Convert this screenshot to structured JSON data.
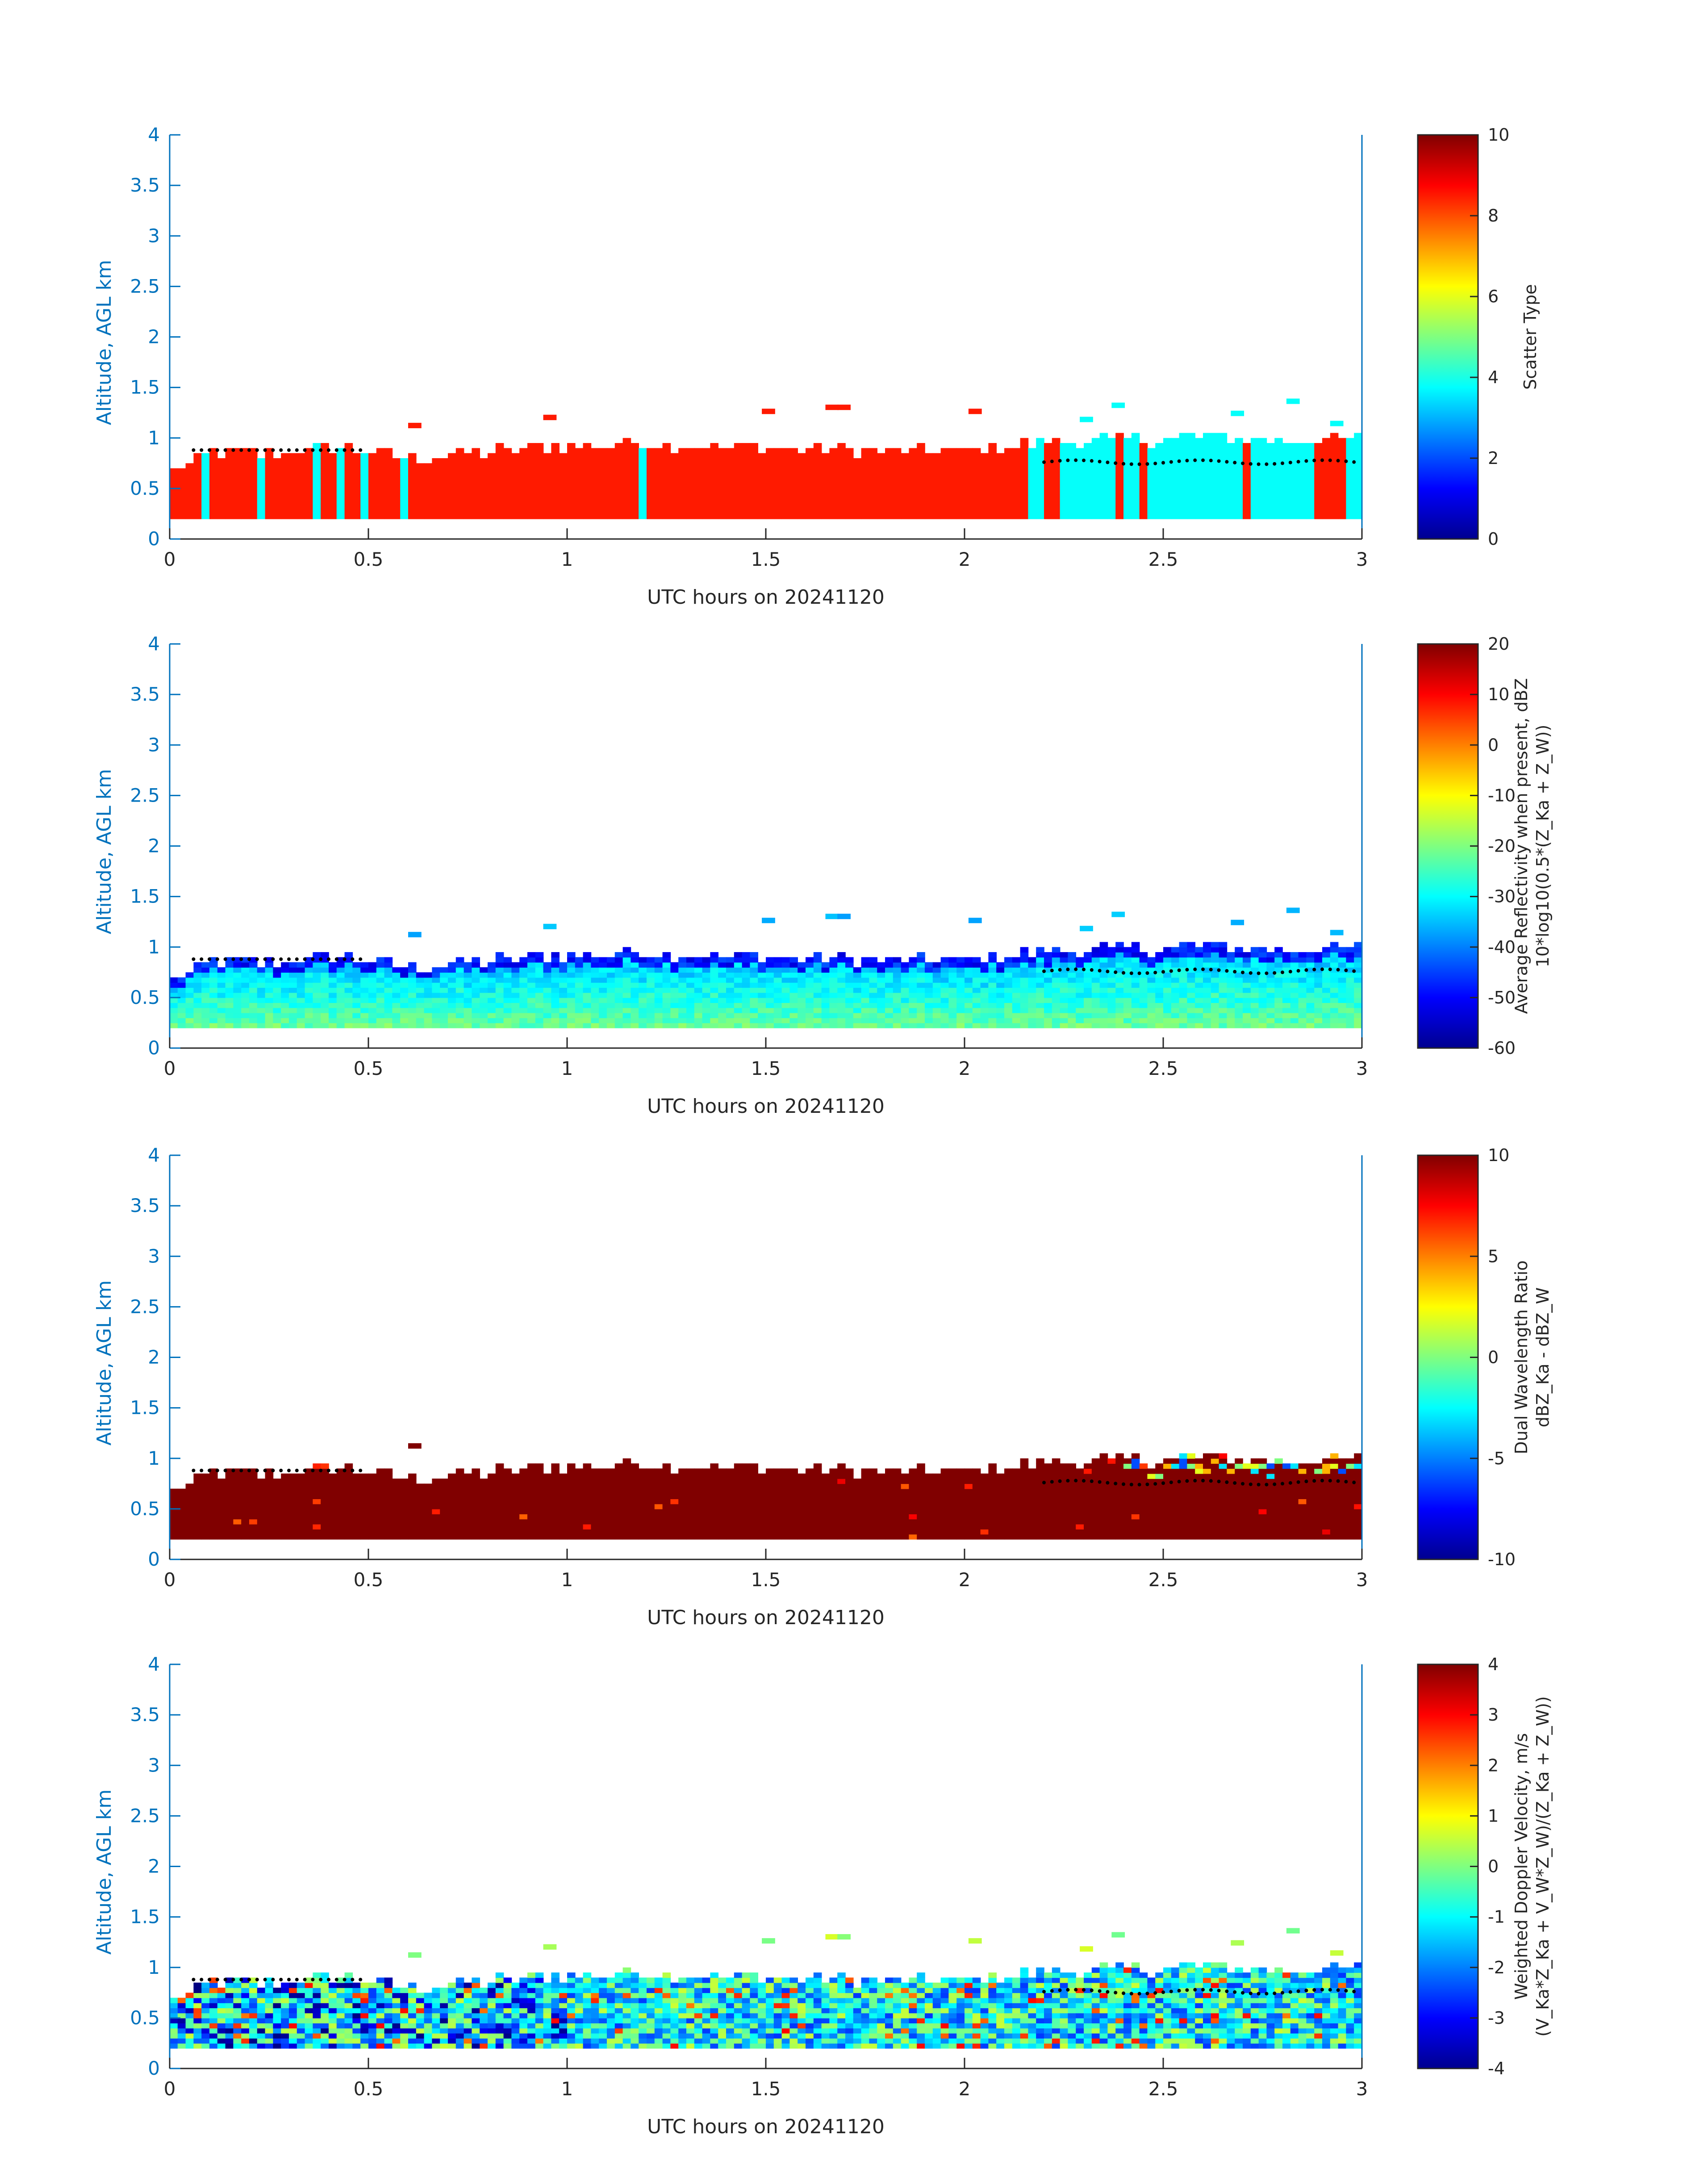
{
  "panels": [
    {
      "ylabel": "Altitude, AGL km",
      "xlabel": "UTC hours on 20241120",
      "colorbar": {
        "cmap": "jet",
        "min": 0,
        "max": 10,
        "ticks": [
          "0",
          "2",
          "4",
          "6",
          "8",
          "10"
        ],
        "label_lines": [
          "Scatter Type"
        ]
      },
      "field": "scatter"
    },
    {
      "ylabel": "Altitude, AGL km",
      "xlabel": "UTC hours on 20241120",
      "colorbar": {
        "cmap": "jet",
        "min": -60,
        "max": 20,
        "ticks": [
          "-60",
          "-50",
          "-40",
          "-30",
          "-20",
          "-10",
          "0",
          "10",
          "20"
        ],
        "label_lines": [
          "Average Reflectivity when present, dBZ",
          "10*log10(0.5*(Z_Ka + Z_W))"
        ]
      },
      "field": "reflectivity"
    },
    {
      "ylabel": "Altitude, AGL km",
      "xlabel": "UTC hours on 20241120",
      "colorbar": {
        "cmap": "jet",
        "min": -10,
        "max": 10,
        "ticks": [
          "-10",
          "-5",
          "0",
          "5",
          "10"
        ],
        "label_lines": [
          "Dual Wavelength Ratio",
          "dBZ_Ka - dBZ_W"
        ]
      },
      "field": "dwr"
    },
    {
      "ylabel": "Altitude, AGL km",
      "xlabel": "UTC hours on 20241120",
      "colorbar": {
        "cmap": "jet",
        "min": -4,
        "max": 4,
        "ticks": [
          "-4",
          "-3",
          "-2",
          "-1",
          "0",
          "1",
          "2",
          "3",
          "4"
        ],
        "label_lines": [
          "Weighted Doppler Velocity, m/s",
          "(V_Ka*Z_Ka + V_W*Z_W)/(Z_Ka + Z_W))"
        ]
      },
      "field": "velocity"
    }
  ],
  "axes": {
    "x_ticks": [
      "0",
      "0.5",
      "1",
      "1.5",
      "2",
      "2.5",
      "3"
    ],
    "y_ticks": [
      "0",
      "0.5",
      "1",
      "1.5",
      "2",
      "2.5",
      "3",
      "3.5",
      "4"
    ],
    "xlim": [
      0,
      3
    ],
    "ylim": [
      0,
      4
    ]
  },
  "chart_data": [
    {
      "type": "heatmap",
      "title": "",
      "xlabel": "UTC hours on 20241120",
      "ylabel": "Altitude, AGL km",
      "xlim": [
        0,
        3
      ],
      "ylim": [
        0,
        4
      ],
      "colorbar_label": "Scatter Type",
      "color_range": [
        0,
        10
      ],
      "description_values": {
        "dominant_value_precip": 8.5,
        "dominant_value_cloud": 3.8
      },
      "cloud_top_km": [
        [
          0.0,
          0.62
        ],
        [
          0.1,
          0.84
        ],
        [
          0.25,
          0.82
        ],
        [
          0.45,
          0.88
        ],
        [
          0.6,
          0.78
        ],
        [
          0.8,
          0.84
        ],
        [
          1.0,
          0.9
        ],
        [
          1.2,
          0.92
        ],
        [
          1.5,
          0.88
        ],
        [
          1.7,
          0.86
        ],
        [
          2.0,
          0.84
        ],
        [
          2.2,
          0.94
        ],
        [
          2.4,
          0.96
        ],
        [
          2.6,
          0.98
        ],
        [
          2.8,
          0.96
        ],
        [
          3.0,
          0.96
        ]
      ],
      "cloud_base_km": 0.2,
      "cloud_regime_intervals_hours": [
        [
          0.07,
          0.1
        ],
        [
          0.22,
          0.24
        ],
        [
          0.36,
          0.38
        ],
        [
          0.42,
          0.45
        ],
        [
          0.48,
          0.5
        ],
        [
          0.59,
          0.61
        ],
        [
          1.18,
          1.2
        ],
        [
          2.16,
          2.21
        ],
        [
          2.24,
          2.37
        ],
        [
          2.4,
          2.43
        ],
        [
          2.45,
          2.7
        ],
        [
          2.72,
          2.88
        ],
        [
          2.96,
          3.0
        ]
      ]
    },
    {
      "type": "heatmap",
      "title": "",
      "xlabel": "UTC hours on 20241120",
      "ylabel": "Altitude, AGL km",
      "xlim": [
        0,
        3
      ],
      "ylim": [
        0,
        4
      ],
      "colorbar_label": "Average Reflectivity when present, dBZ",
      "color_range": [
        -60,
        20
      ],
      "typical_values_dBZ": {
        "lower_cloud": -22,
        "mid_cloud": -32,
        "cloud_top": -50
      }
    },
    {
      "type": "heatmap",
      "title": "",
      "xlabel": "UTC hours on 20241120",
      "ylabel": "Altitude, AGL km",
      "xlim": [
        0,
        3
      ],
      "ylim": [
        0,
        4
      ],
      "colorbar_label": "Dual Wavelength Ratio",
      "color_range": [
        -10,
        10
      ],
      "typical_values_dB": {
        "bulk": 10,
        "scattered_top_after_2.4h": [
          0,
          4,
          -6
        ]
      }
    },
    {
      "type": "heatmap",
      "title": "",
      "xlabel": "UTC hours on 20241120",
      "ylabel": "Altitude, AGL km",
      "xlim": [
        0,
        3
      ],
      "ylim": [
        0,
        4
      ],
      "colorbar_label": "Weighted Doppler Velocity, m/s",
      "color_range": [
        -4,
        4
      ],
      "typical_values_ms": {
        "mean": -1,
        "spread": [
          -3.5,
          2.5
        ]
      }
    }
  ]
}
